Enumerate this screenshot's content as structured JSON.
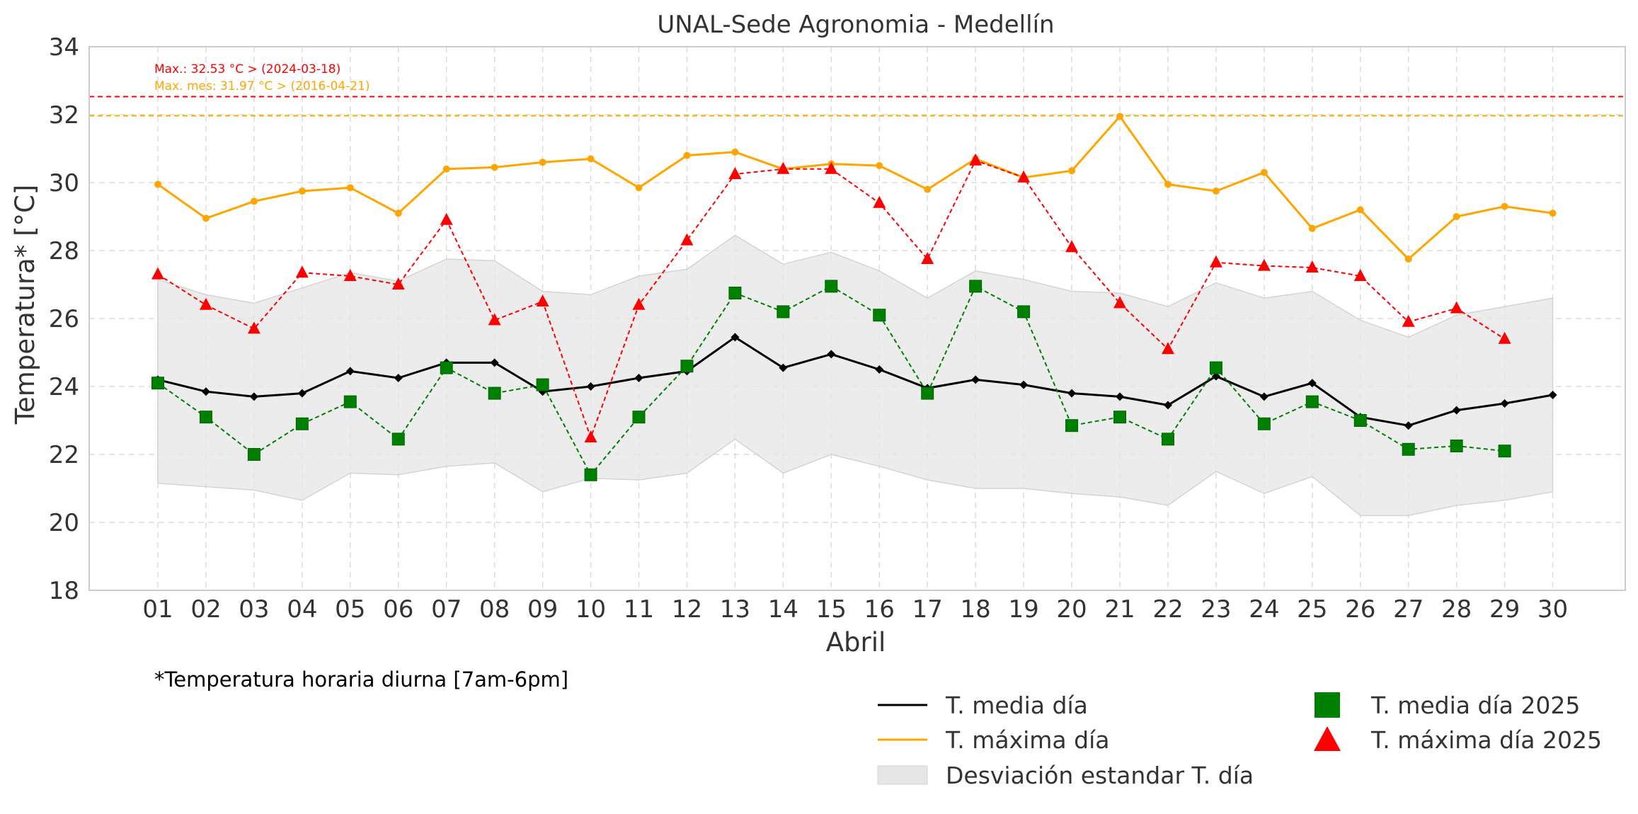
{
  "chart_data": {
    "type": "line",
    "title": "UNAL-Sede Agronomia - Medellín",
    "xlabel": "Abril",
    "ylabel": "Temperatura* [°C]",
    "ylim": [
      18,
      34
    ],
    "yticks": [
      18,
      20,
      22,
      24,
      26,
      28,
      30,
      32,
      34
    ],
    "grid": true,
    "legend_position": "bottom-right",
    "categories": [
      "01",
      "02",
      "03",
      "04",
      "05",
      "06",
      "07",
      "08",
      "09",
      "10",
      "11",
      "12",
      "13",
      "14",
      "15",
      "16",
      "17",
      "18",
      "19",
      "20",
      "21",
      "22",
      "23",
      "24",
      "25",
      "26",
      "27",
      "28",
      "29",
      "30"
    ],
    "series": [
      {
        "name": "T. media día",
        "color": "#000000",
        "marker": "diamond",
        "line": "solid",
        "values": [
          24.2,
          23.85,
          23.7,
          23.8,
          24.45,
          24.25,
          24.7,
          24.7,
          23.85,
          24.0,
          24.25,
          24.45,
          25.45,
          24.55,
          24.95,
          24.5,
          23.95,
          24.2,
          24.05,
          23.8,
          23.7,
          23.45,
          24.3,
          23.7,
          24.1,
          23.1,
          22.85,
          23.3,
          23.5,
          23.75
        ]
      },
      {
        "name": "T. máxima día",
        "color": "#ffa500",
        "marker": "circle",
        "line": "solid",
        "values": [
          29.95,
          28.95,
          29.45,
          29.75,
          29.85,
          29.1,
          30.4,
          30.45,
          30.6,
          30.7,
          29.85,
          30.8,
          30.9,
          30.4,
          30.55,
          30.5,
          29.8,
          30.7,
          30.15,
          30.35,
          31.95,
          29.95,
          29.75,
          30.3,
          28.65,
          29.2,
          27.75,
          29.0,
          29.3,
          29.1
        ]
      },
      {
        "name": "T. media día 2025",
        "color": "#008000",
        "marker": "square",
        "line": "dashed",
        "values": [
          24.1,
          23.1,
          22.0,
          22.9,
          23.55,
          22.45,
          24.55,
          23.8,
          24.05,
          21.4,
          23.1,
          24.6,
          26.75,
          26.2,
          26.95,
          26.1,
          23.8,
          26.95,
          26.2,
          22.85,
          23.1,
          22.45,
          24.55,
          22.9,
          23.55,
          23.0,
          22.15,
          22.25,
          22.1,
          null
        ]
      },
      {
        "name": "T. máxima día 2025",
        "color": "#ff0000",
        "marker": "triangle",
        "line": "dashed",
        "values": [
          27.3,
          26.4,
          25.7,
          27.35,
          27.25,
          27.0,
          28.9,
          25.95,
          26.5,
          22.5,
          26.4,
          28.3,
          30.25,
          30.4,
          30.4,
          29.4,
          27.75,
          30.65,
          30.15,
          28.1,
          26.45,
          25.1,
          27.65,
          27.55,
          27.5,
          27.25,
          25.9,
          26.3,
          25.4,
          null
        ]
      }
    ],
    "band": {
      "name": "Desviación estandar T. día",
      "color": "#e6e6e6",
      "lower": [
        21.15,
        21.05,
        20.95,
        20.65,
        21.45,
        21.4,
        21.65,
        21.75,
        20.9,
        21.3,
        21.25,
        21.45,
        22.45,
        21.45,
        22.0,
        21.65,
        21.25,
        21.0,
        21.0,
        20.85,
        20.75,
        20.5,
        21.5,
        20.85,
        21.35,
        20.2,
        20.2,
        20.5,
        20.65,
        20.9
      ],
      "upper": [
        27.15,
        26.7,
        26.45,
        26.9,
        27.35,
        27.1,
        27.75,
        27.7,
        26.8,
        26.7,
        27.25,
        27.45,
        28.45,
        27.6,
        27.95,
        27.4,
        26.6,
        27.4,
        27.15,
        26.8,
        26.75,
        26.35,
        27.05,
        26.6,
        26.8,
        25.95,
        25.45,
        26.1,
        26.35,
        26.6
      ]
    },
    "reference_lines": [
      {
        "value": 32.53,
        "color": "#ff0000",
        "label": "Max.: 32.53 °C  >  (2024-03-18)"
      },
      {
        "value": 31.97,
        "color": "#ffa500",
        "label": "Max. mes: 31.97 °C  >  (2016-04-21)"
      }
    ],
    "footnote": "*Temperatura horaria diurna [7am-6pm]"
  }
}
